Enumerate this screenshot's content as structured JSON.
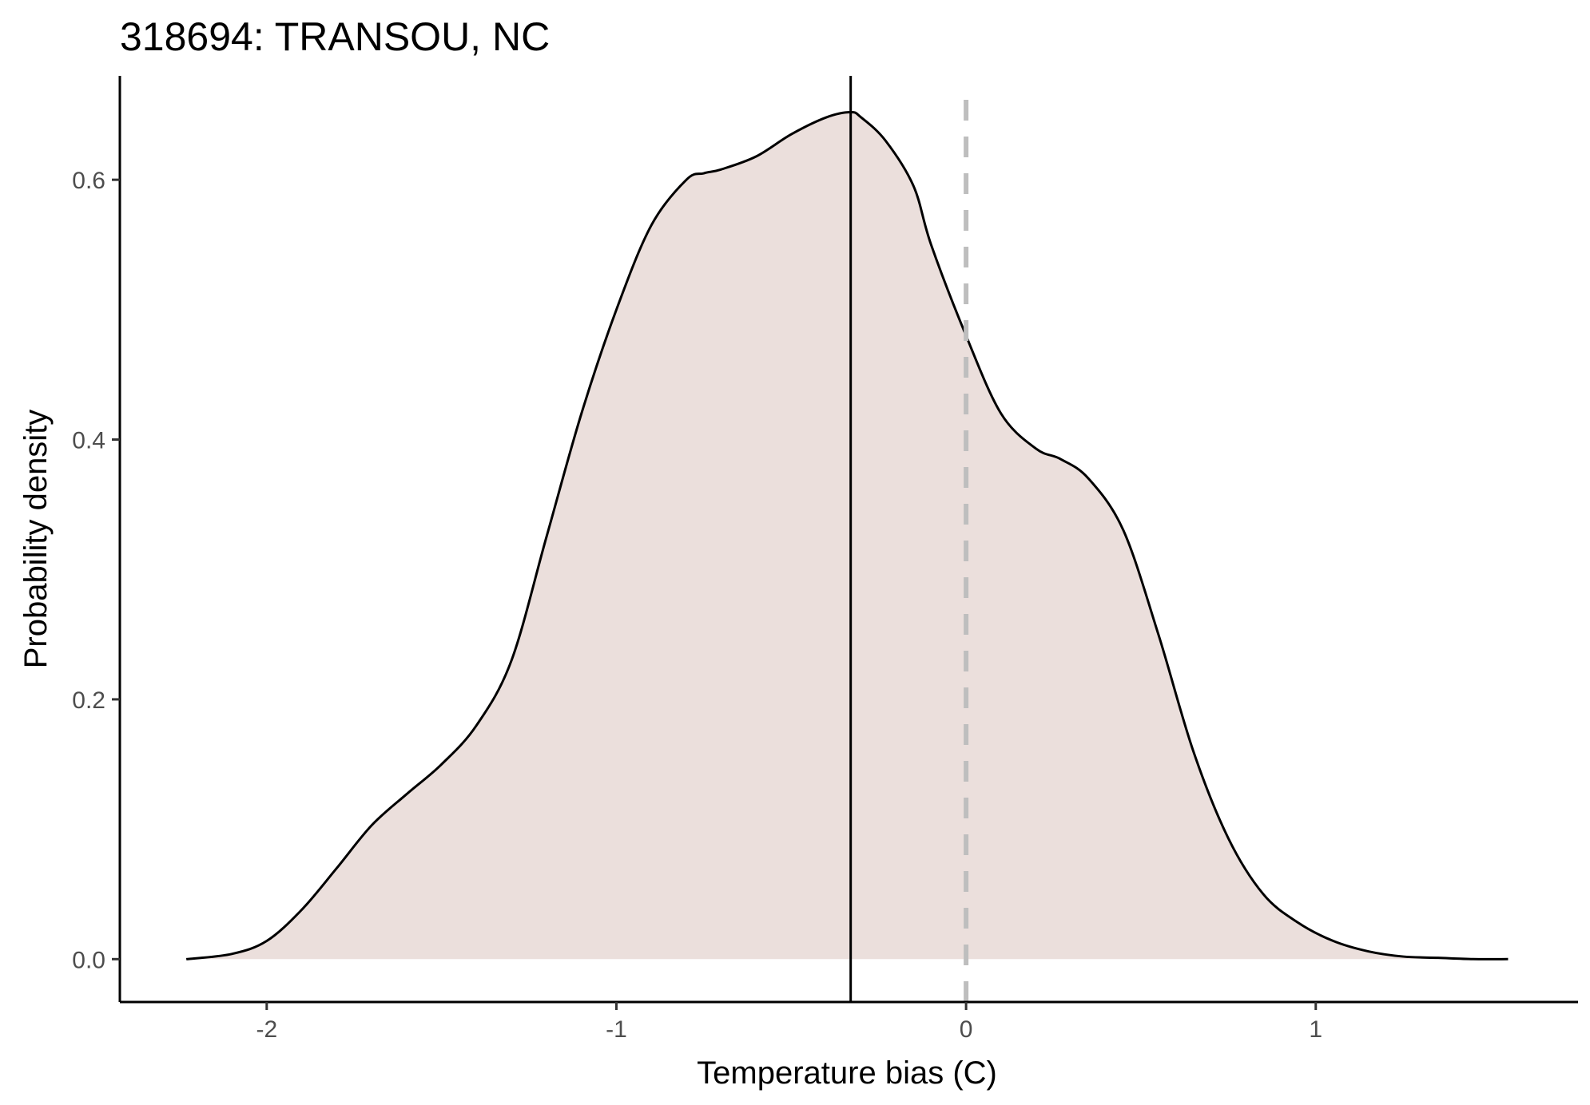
{
  "chart_data": {
    "type": "area",
    "title": "318694: TRANSOU, NC",
    "xlabel": "Temperature bias (C)",
    "ylabel": "Probability density",
    "xlim": [
      -2.42,
      1.75
    ],
    "ylim": [
      -0.033,
      0.68
    ],
    "x_ticks": [
      -2,
      -1,
      0,
      1
    ],
    "x_tick_labels": [
      "-2",
      "-1",
      "0",
      "1"
    ],
    "y_ticks": [
      0.0,
      0.2,
      0.4,
      0.6
    ],
    "y_tick_labels": [
      "0.0",
      "0.2",
      "0.4",
      "0.6"
    ],
    "grid": false,
    "legend": "none",
    "density_fill_color": "#ebdfdc",
    "density_line_color": "#000000",
    "mean_line": {
      "x": -0.33,
      "color": "#000000",
      "style": "solid"
    },
    "zero_line": {
      "x": 0.0,
      "color": "#bebebe",
      "style": "dashed"
    },
    "series": [
      {
        "x": [
          -2.23,
          -2.1,
          -2.0,
          -1.9,
          -1.8,
          -1.7,
          -1.6,
          -1.5,
          -1.4,
          -1.3,
          -1.2,
          -1.1,
          -1.0,
          -0.9,
          -0.8,
          -0.75,
          -0.7,
          -0.6,
          -0.5,
          -0.4,
          -0.33,
          -0.3,
          -0.23,
          -0.15,
          -0.1,
          0.0,
          0.1,
          0.2,
          0.27,
          0.35,
          0.45,
          0.55,
          0.65,
          0.75,
          0.85,
          0.95,
          1.05,
          1.15,
          1.25,
          1.35,
          1.45,
          1.55
        ],
        "y": [
          0.0,
          0.004,
          0.014,
          0.038,
          0.07,
          0.103,
          0.127,
          0.15,
          0.18,
          0.23,
          0.325,
          0.42,
          0.5,
          0.565,
          0.6,
          0.605,
          0.608,
          0.618,
          0.635,
          0.648,
          0.652,
          0.648,
          0.63,
          0.595,
          0.55,
          0.48,
          0.42,
          0.393,
          0.385,
          0.37,
          0.33,
          0.25,
          0.16,
          0.093,
          0.05,
          0.028,
          0.014,
          0.006,
          0.002,
          0.001,
          0.0,
          0.0
        ]
      }
    ]
  }
}
